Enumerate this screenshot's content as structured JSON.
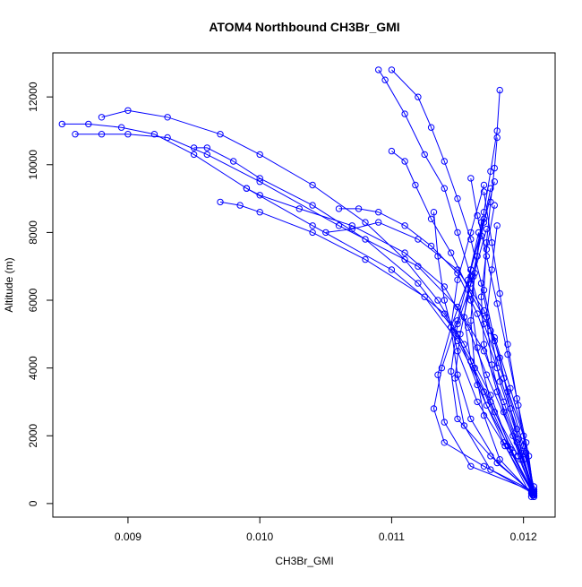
{
  "chart_data": {
    "type": "line",
    "title": "ATOM4 Northbound CH3Br_GMI",
    "xlabel": "CH3Br_GMI",
    "ylabel": "Altitude (m)",
    "xlim": [
      0.00843,
      0.01224
    ],
    "ylim": [
      -400,
      13300
    ],
    "x_ticks": [
      0.009,
      0.01,
      0.011,
      0.012
    ],
    "x_tick_labels": [
      "0.009",
      "0.010",
      "0.011",
      "0.012"
    ],
    "y_ticks": [
      0,
      2000,
      4000,
      6000,
      8000,
      10000,
      12000
    ],
    "y_tick_labels": [
      "0",
      "2000",
      "4000",
      "6000",
      "8000",
      "10000",
      "12000"
    ],
    "series_style": {
      "color": "#0000ff",
      "marker": "open-circle",
      "line": "solid"
    },
    "series": [
      {
        "x": [
          0.01208,
          0.01196,
          0.01178,
          0.0116,
          0.0114,
          0.011,
          0.0104,
          0.0099,
          0.0095,
          0.0092,
          0.00895,
          0.0087,
          0.0085
        ],
        "y": [
          250,
          1400,
          2700,
          4200,
          5600,
          6900,
          8200,
          9300,
          10300,
          10900,
          11100,
          11200,
          11200
        ]
      },
      {
        "x": [
          0.01208,
          0.01198,
          0.01185,
          0.0117,
          0.0115,
          0.0112,
          0.0106,
          0.01,
          0.0096,
          0.0093,
          0.009,
          0.0088,
          0.0086
        ],
        "y": [
          300,
          1500,
          3000,
          4500,
          5800,
          7000,
          8200,
          9500,
          10300,
          10800,
          10900,
          10900,
          10900
        ]
      },
      {
        "x": [
          0.01207,
          0.0119,
          0.01175,
          0.01155,
          0.01135,
          0.0111,
          0.0108,
          0.0104,
          0.01,
          0.0097,
          0.0093,
          0.009,
          0.0088
        ],
        "y": [
          350,
          1600,
          3200,
          4700,
          6000,
          7200,
          8300,
          9400,
          10300,
          10900,
          11400,
          11600,
          11400
        ]
      },
      {
        "x": [
          0.01206,
          0.01185,
          0.01165,
          0.0115,
          0.0112,
          0.0108,
          0.0104,
          0.01,
          0.0098,
          0.0096,
          0.0095
        ],
        "y": [
          200,
          1800,
          3500,
          5000,
          6500,
          7800,
          8800,
          9600,
          10100,
          10500,
          10500
        ]
      },
      {
        "x": [
          0.01208,
          0.01192,
          0.01172,
          0.01158,
          0.0114,
          0.0111,
          0.0107,
          0.0103,
          0.01,
          0.0099
        ],
        "y": [
          400,
          2000,
          3800,
          5200,
          6400,
          7400,
          8200,
          8700,
          9100,
          9300
        ]
      },
      {
        "x": [
          0.01207,
          0.01188,
          0.0117,
          0.0115,
          0.01125,
          0.0108,
          0.0104,
          0.01,
          0.00985,
          0.0097
        ],
        "y": [
          300,
          1700,
          3300,
          4800,
          6100,
          7200,
          8000,
          8600,
          8800,
          8900
        ]
      },
      {
        "x": [
          0.01208,
          0.01195,
          0.0118,
          0.01165,
          0.0115,
          0.0113,
          0.0111,
          0.0109,
          0.01075,
          0.0106
        ],
        "y": [
          500,
          2200,
          4000,
          5600,
          6800,
          7600,
          8200,
          8600,
          8700,
          8700
        ]
      },
      {
        "x": [
          0.01207,
          0.012,
          0.0119,
          0.01182,
          0.0117,
          0.0115,
          0.0112,
          0.0109,
          0.0107,
          0.0105
        ],
        "y": [
          250,
          1300,
          2800,
          4300,
          5700,
          6900,
          7800,
          8300,
          8100,
          8000
        ]
      },
      {
        "x": [
          0.01208,
          0.01202,
          0.0119,
          0.01178,
          0.0116,
          0.01145,
          0.0113,
          0.01118,
          0.0111,
          0.011
        ],
        "y": [
          350,
          1800,
          3400,
          4900,
          6200,
          7400,
          8400,
          9400,
          10100,
          10400
        ]
      },
      {
        "x": [
          0.01208,
          0.012,
          0.01185,
          0.0117,
          0.0116,
          0.0115,
          0.0114,
          0.01125,
          0.0111,
          0.01095,
          0.0109
        ],
        "y": [
          400,
          2000,
          3700,
          5300,
          6700,
          8000,
          9300,
          10300,
          11500,
          12500,
          12800
        ]
      },
      {
        "x": [
          0.01208,
          0.01196,
          0.01182,
          0.01175,
          0.01168,
          0.0116,
          0.0115,
          0.0114,
          0.0113,
          0.0112,
          0.011
        ],
        "y": [
          300,
          1900,
          3600,
          5100,
          6500,
          7800,
          9000,
          10100,
          11100,
          12000,
          12800
        ]
      },
      {
        "x": [
          0.01207,
          0.01192,
          0.01175,
          0.01165,
          0.0116,
          0.01165,
          0.0117,
          0.01175,
          0.0118,
          0.01182
        ],
        "y": [
          250,
          1500,
          3000,
          4600,
          6000,
          7300,
          8600,
          9800,
          11000,
          12200
        ]
      },
      {
        "x": [
          0.01208,
          0.012,
          0.01188,
          0.01178,
          0.0117,
          0.01172,
          0.01175,
          0.01178,
          0.0118
        ],
        "y": [
          300,
          1700,
          3300,
          4800,
          6300,
          7700,
          8900,
          9900,
          10800
        ]
      },
      {
        "x": [
          0.01208,
          0.01204,
          0.01196,
          0.01188,
          0.0118,
          0.01172,
          0.01165,
          0.0116
        ],
        "y": [
          200,
          1400,
          2900,
          4400,
          5900,
          7300,
          8500,
          9600
        ]
      },
      {
        "x": [
          0.01206,
          0.0118,
          0.0116,
          0.0115,
          0.01145,
          0.0115,
          0.0116,
          0.0117
        ],
        "y": [
          350,
          1200,
          2500,
          3800,
          5200,
          6600,
          8000,
          9400
        ]
      },
      {
        "x": [
          0.01207,
          0.01175,
          0.01155,
          0.01148,
          0.01152,
          0.0116,
          0.01168,
          0.01175
        ],
        "y": [
          300,
          1000,
          2300,
          3700,
          5000,
          6500,
          7900,
          9300
        ]
      },
      {
        "x": [
          0.01208,
          0.0119,
          0.01172,
          0.0116,
          0.01155,
          0.0116,
          0.0117,
          0.01178
        ],
        "y": [
          250,
          1600,
          2900,
          4200,
          5500,
          6900,
          8300,
          9500
        ]
      },
      {
        "x": [
          0.01208,
          0.0117,
          0.0114,
          0.01132,
          0.01138,
          0.0115,
          0.0116,
          0.0117
        ],
        "y": [
          350,
          1100,
          1800,
          2800,
          4000,
          5400,
          6900,
          8400
        ]
      },
      {
        "x": [
          0.01207,
          0.01175,
          0.0115,
          0.01145,
          0.0115,
          0.01162,
          0.01172
        ],
        "y": [
          300,
          1400,
          2500,
          3900,
          5300,
          6700,
          8100
        ]
      },
      {
        "x": [
          0.01208,
          0.01195,
          0.0118,
          0.0117,
          0.01168,
          0.01172,
          0.01178
        ],
        "y": [
          250,
          1800,
          3300,
          4700,
          6100,
          7500,
          8800
        ]
      },
      {
        "x": [
          0.01208,
          0.01198,
          0.01185,
          0.01176,
          0.01172,
          0.01176,
          0.0118
        ],
        "y": [
          200,
          1300,
          2700,
          4100,
          5500,
          6900,
          8200
        ]
      },
      {
        "x": [
          0.01207,
          0.01186,
          0.01165,
          0.0115,
          0.0114,
          0.01135,
          0.01132
        ],
        "y": [
          300,
          1700,
          3000,
          4500,
          6000,
          7300,
          8600
        ]
      },
      {
        "x": [
          0.01208,
          0.0116,
          0.0114,
          0.01135,
          0.01145,
          0.01158,
          0.01166
        ],
        "y": [
          350,
          1100,
          2400,
          3800,
          5200,
          6600,
          8000
        ]
      },
      {
        "x": [
          0.01208,
          0.01202,
          0.01195,
          0.01188,
          0.01182,
          0.01176,
          0.0117
        ],
        "y": [
          250,
          1500,
          3100,
          4700,
          6200,
          7700,
          9200
        ]
      },
      {
        "x": [
          0.01206,
          0.01182,
          0.0117,
          0.01163,
          0.0116,
          0.01163,
          0.01168
        ],
        "y": [
          300,
          1300,
          2600,
          4000,
          5400,
          6800,
          8300
        ]
      }
    ]
  }
}
